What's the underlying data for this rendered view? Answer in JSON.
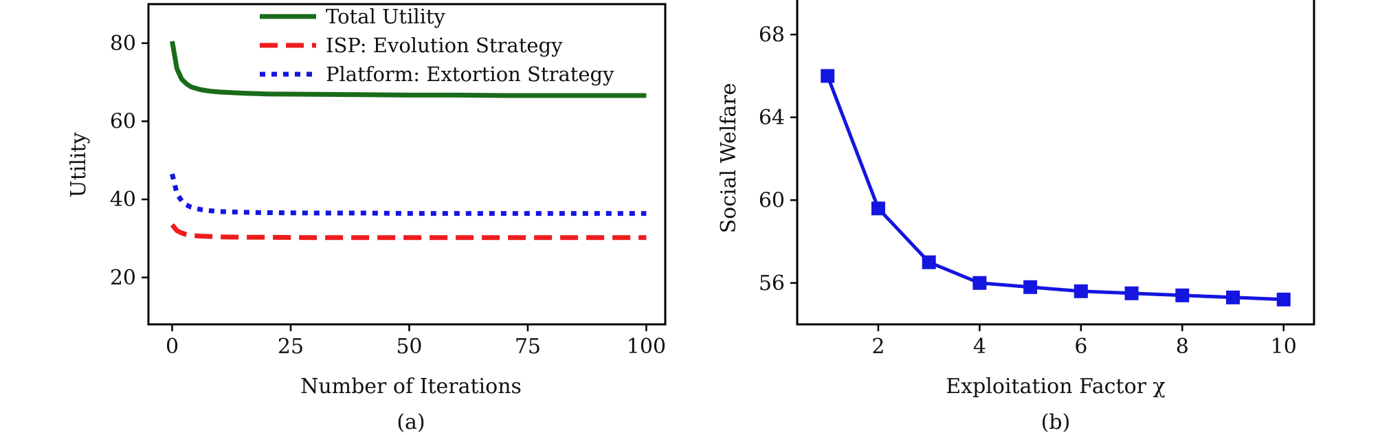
{
  "chart_data": [
    {
      "type": "line",
      "caption": "(a)",
      "xlabel": "Number of Iterations",
      "ylabel": "Utility",
      "xlim": [
        -5,
        104
      ],
      "ylim": [
        8,
        90
      ],
      "xticks": [
        0,
        25,
        50,
        75,
        100
      ],
      "yticks": [
        20,
        40,
        60,
        80
      ],
      "legend": "top-center",
      "series": [
        {
          "name": "Total Utility",
          "color": "#1a6b1a",
          "style": "solid",
          "x": [
            0,
            1,
            2,
            3,
            4,
            6,
            8,
            10,
            15,
            20,
            30,
            40,
            50,
            60,
            70,
            80,
            90,
            100
          ],
          "values": [
            80.5,
            73.5,
            70.8,
            69.6,
            68.8,
            68.1,
            67.7,
            67.5,
            67.2,
            67.0,
            66.9,
            66.8,
            66.7,
            66.7,
            66.6,
            66.6,
            66.6,
            66.6
          ]
        },
        {
          "name": "ISP: Evolution Strategy",
          "color": "#ee1c1c",
          "style": "dashed",
          "x": [
            0,
            1,
            2,
            3,
            4,
            6,
            8,
            10,
            15,
            20,
            30,
            40,
            50,
            60,
            70,
            80,
            90,
            100
          ],
          "values": [
            33.5,
            32.0,
            31.4,
            31.0,
            30.8,
            30.6,
            30.5,
            30.4,
            30.3,
            30.3,
            30.2,
            30.2,
            30.2,
            30.2,
            30.2,
            30.2,
            30.2,
            30.2
          ]
        },
        {
          "name": "Platform: Extortion Strategy",
          "color": "#1515e0",
          "style": "dotted",
          "x": [
            0,
            1,
            2,
            3,
            4,
            6,
            8,
            10,
            15,
            20,
            30,
            40,
            50,
            60,
            70,
            80,
            90,
            100
          ],
          "values": [
            46.5,
            41.5,
            39.6,
            38.6,
            38.0,
            37.4,
            37.1,
            36.9,
            36.7,
            36.6,
            36.5,
            36.5,
            36.4,
            36.4,
            36.4,
            36.4,
            36.4,
            36.4
          ]
        }
      ]
    },
    {
      "type": "line",
      "caption": "(b)",
      "xlabel": "Exploitation Factor χ",
      "ylabel": "Social Welfare",
      "xlim": [
        0.4,
        10.6
      ],
      "ylim": [
        54,
        70
      ],
      "xticks": [
        2,
        4,
        6,
        8,
        10
      ],
      "yticks": [
        56,
        60,
        64,
        68
      ],
      "series": [
        {
          "color": "#1515e0",
          "marker": "square",
          "x": [
            1,
            2,
            3,
            4,
            5,
            6,
            7,
            8,
            9,
            10
          ],
          "values": [
            66.0,
            59.6,
            57.0,
            56.0,
            55.8,
            55.6,
            55.5,
            55.4,
            55.3,
            55.2
          ]
        }
      ]
    }
  ]
}
